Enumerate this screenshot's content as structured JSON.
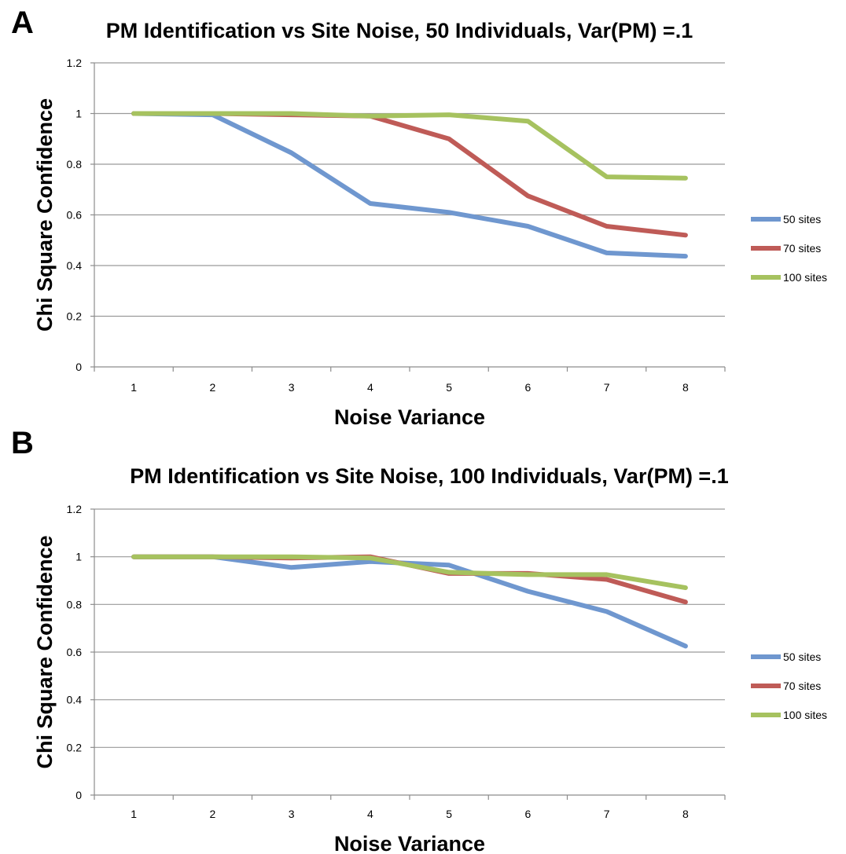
{
  "chart_data": [
    {
      "type": "line",
      "panel": "A",
      "title": "PM Identification vs Site Noise, 50 Individuals, Var(PM) =.1",
      "xlabel": "Noise Variance",
      "ylabel": "Chi Square Confidence",
      "categories": [
        "1",
        "2",
        "3",
        "4",
        "5",
        "6",
        "7",
        "8"
      ],
      "ylim": [
        0,
        1.2
      ],
      "yticks": [
        "0",
        "0.2",
        "0.4",
        "0.6",
        "0.8",
        "1",
        "1.2"
      ],
      "grid": true,
      "legend_position": "right",
      "series": [
        {
          "name": "50 sites",
          "color": "#6f97cf",
          "values": [
            1.0,
            0.995,
            0.845,
            0.645,
            0.61,
            0.555,
            0.45,
            0.437
          ]
        },
        {
          "name": "70 sites",
          "color": "#bf5b57",
          "values": [
            1.0,
            1.0,
            0.995,
            0.99,
            0.9,
            0.675,
            0.555,
            0.52
          ]
        },
        {
          "name": "100 sites",
          "color": "#a6c25f",
          "values": [
            1.0,
            1.0,
            1.0,
            0.99,
            0.995,
            0.97,
            0.75,
            0.745
          ]
        }
      ]
    },
    {
      "type": "line",
      "panel": "B",
      "title": "PM Identification vs Site Noise, 100 Individuals, Var(PM) =.1",
      "xlabel": "Noise Variance",
      "ylabel": "Chi Square Confidence",
      "categories": [
        "1",
        "2",
        "3",
        "4",
        "5",
        "6",
        "7",
        "8"
      ],
      "ylim": [
        0,
        1.2
      ],
      "yticks": [
        "0",
        "0.2",
        "0.4",
        "0.6",
        "0.8",
        "1",
        "1.2"
      ],
      "grid": true,
      "legend_position": "right",
      "series": [
        {
          "name": "50 sites",
          "color": "#6f97cf",
          "values": [
            1.0,
            1.0,
            0.955,
            0.98,
            0.965,
            0.855,
            0.77,
            0.625
          ]
        },
        {
          "name": "70 sites",
          "color": "#bf5b57",
          "values": [
            1.0,
            1.0,
            0.995,
            1.0,
            0.93,
            0.93,
            0.905,
            0.81
          ]
        },
        {
          "name": "100 sites",
          "color": "#a6c25f",
          "values": [
            1.0,
            1.0,
            1.0,
            0.995,
            0.935,
            0.925,
            0.925,
            0.87
          ]
        }
      ]
    }
  ]
}
